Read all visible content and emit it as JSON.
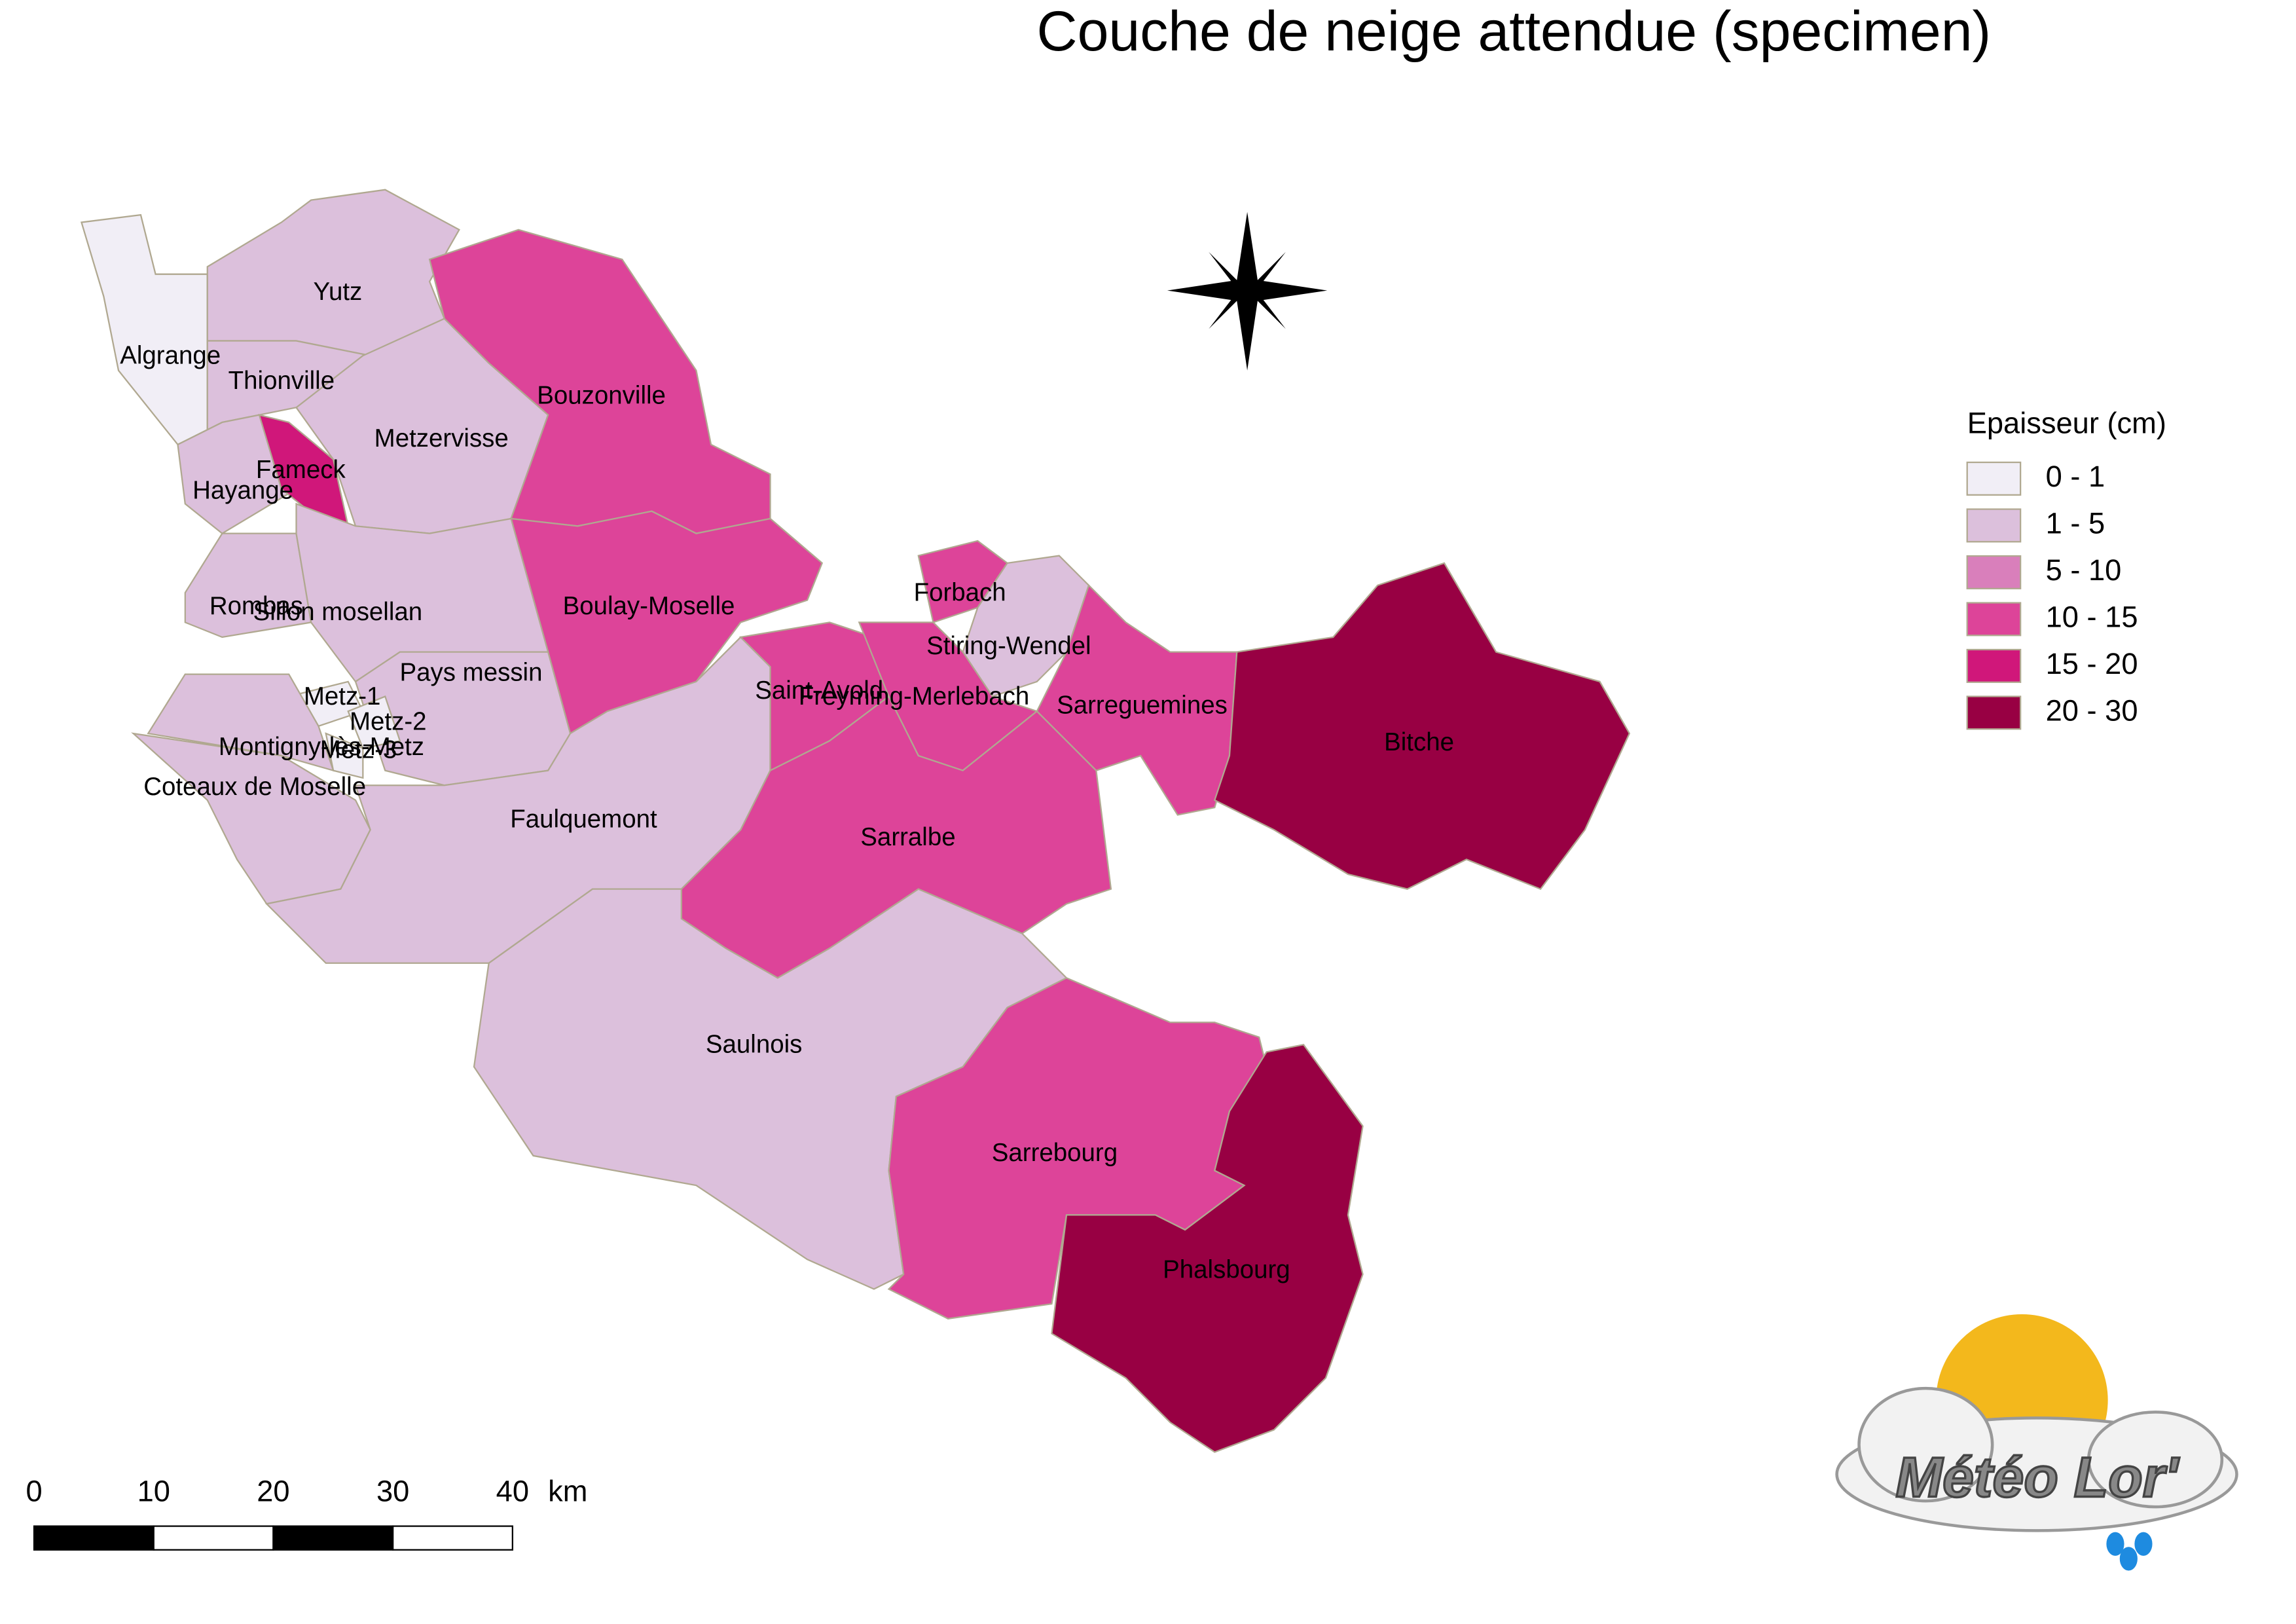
{
  "title": "Couche de neige attendue (specimen)",
  "legend": {
    "title": "Epaisseur (cm)",
    "items": [
      {
        "label": "0 - 1",
        "color": "#f1eef6"
      },
      {
        "label": "1 - 5",
        "color": "#dcc0dc"
      },
      {
        "label": "5 - 10",
        "color": "#d97fbb"
      },
      {
        "label": "10 - 15",
        "color": "#dd4499"
      },
      {
        "label": "15 - 20",
        "color": "#d0177a"
      },
      {
        "label": "20 - 30",
        "color": "#980043"
      }
    ]
  },
  "regions": [
    {
      "name": "Algrange",
      "color": "#f1eef6"
    },
    {
      "name": "Yutz",
      "color": "#dcc0dc"
    },
    {
      "name": "Thionville",
      "color": "#dcc0dc"
    },
    {
      "name": "Hayange",
      "color": "#dcc0dc"
    },
    {
      "name": "Fameck",
      "color": "#d0177a"
    },
    {
      "name": "Metzervisse",
      "color": "#dcc0dc"
    },
    {
      "name": "Bouzonville",
      "color": "#dd4499"
    },
    {
      "name": "Boulay-Moselle",
      "color": "#dd4499"
    },
    {
      "name": "Rombas",
      "color": "#dcc0dc"
    },
    {
      "name": "Sillon mosellan",
      "color": "#dcc0dc"
    },
    {
      "name": "Pays messin",
      "color": "#dcc0dc"
    },
    {
      "name": "Metz-1",
      "color": "#f1eef6"
    },
    {
      "name": "Metz-2",
      "color": "#f1eef6"
    },
    {
      "name": "Metz-3",
      "color": "#f1eef6"
    },
    {
      "name": "Montigny-lès-Metz",
      "color": "#dcc0dc"
    },
    {
      "name": "Coteaux de Moselle",
      "color": "#dcc0dc"
    },
    {
      "name": "Faulquemont",
      "color": "#dcc0dc"
    },
    {
      "name": "Forbach",
      "color": "#dd4499"
    },
    {
      "name": "Stiring-Wendel",
      "color": "#dcc0dc"
    },
    {
      "name": "Saint-Avold",
      "color": "#dd4499"
    },
    {
      "name": "Freyming-Merlebach",
      "color": "#dd4499"
    },
    {
      "name": "Sarreguemines",
      "color": "#dd4499"
    },
    {
      "name": "Bitche",
      "color": "#980043"
    },
    {
      "name": "Sarralbe",
      "color": "#dd4499"
    },
    {
      "name": "Saulnois",
      "color": "#dcc0dc"
    },
    {
      "name": "Sarrebourg",
      "color": "#dd4499"
    },
    {
      "name": "Phalsbourg",
      "color": "#980043"
    }
  ],
  "scale_bar": {
    "ticks": [
      0,
      10,
      20,
      30,
      40
    ],
    "unit": "km"
  },
  "logo": {
    "text": "Météo Lor'"
  }
}
